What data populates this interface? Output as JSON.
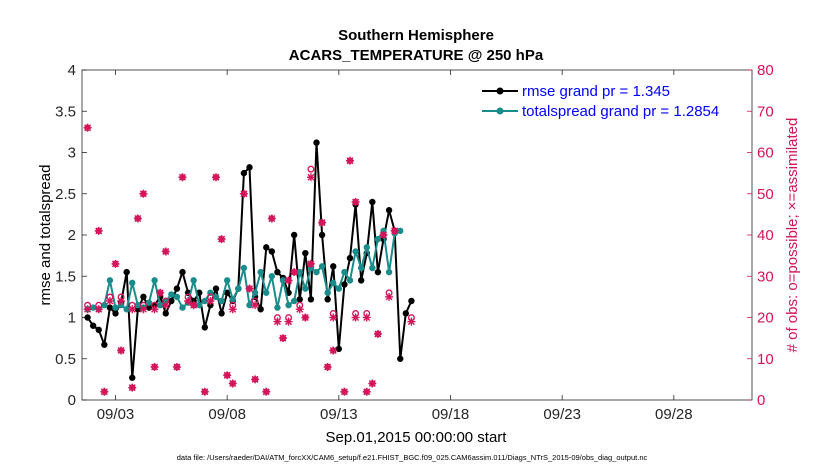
{
  "chart_data": {
    "type": "line",
    "title": "Southern Hemisphere",
    "subtitle": "ACARS_TEMPERATURE @ 250 hPa",
    "xlabel": "Sep.01,2015 00:00:00 start",
    "ylabel": "rmse and totalspread",
    "y2label": "# of obs: o=possible; ×=assimilated",
    "footer": "data file: /Users/raeder/DAI/ATM_forcXX/CAM6_setup/f.e21.FHIST_BGC.f09_025.CAM6assim.011/Diags_NTrS_2015-09/obs_diag_output.nc",
    "x_range": [
      1.5,
      31.5
    ],
    "xticks": [
      3,
      8,
      13,
      18,
      23,
      28
    ],
    "xtick_labels": [
      "09/03",
      "09/08",
      "09/13",
      "09/18",
      "09/23",
      "09/28"
    ],
    "ylim": [
      0,
      4
    ],
    "yticks": [
      0,
      0.5,
      1,
      1.5,
      2,
      2.5,
      3,
      3.5,
      4
    ],
    "ytick_labels": [
      "0",
      "0.5",
      "1",
      "1.5",
      "2",
      "2.5",
      "3",
      "3.5",
      "4"
    ],
    "y2lim": [
      0,
      80
    ],
    "y2ticks": [
      0,
      10,
      20,
      30,
      40,
      50,
      60,
      70,
      80
    ],
    "y2tick_labels": [
      "0",
      "10",
      "20",
      "30",
      "40",
      "50",
      "60",
      "70",
      "80"
    ],
    "legend_position": "top-right",
    "colors": {
      "rmse": "#000000",
      "spread": "#1a8c8c",
      "obs": "#d4145a",
      "text_blue": "#0000ff"
    },
    "series": [
      {
        "name": "rmse grand pr = 1.345",
        "color": "#000000",
        "points": [
          [
            1.75,
            1.0
          ],
          [
            2.0,
            0.9
          ],
          [
            2.25,
            0.85
          ],
          [
            2.5,
            0.67
          ],
          [
            2.75,
            1.12
          ],
          [
            3.0,
            1.05
          ],
          [
            3.25,
            1.18
          ],
          [
            3.5,
            1.55
          ],
          [
            3.75,
            0.27
          ],
          [
            4.0,
            1.1
          ],
          [
            4.25,
            1.25
          ],
          [
            4.5,
            1.12
          ],
          [
            4.75,
            1.15
          ],
          [
            5.0,
            1.25
          ],
          [
            5.25,
            1.05
          ],
          [
            5.5,
            1.2
          ],
          [
            5.75,
            1.35
          ],
          [
            6.0,
            1.55
          ],
          [
            6.25,
            1.3
          ],
          [
            6.5,
            1.2
          ],
          [
            6.75,
            1.3
          ],
          [
            7.0,
            0.88
          ],
          [
            7.25,
            1.15
          ],
          [
            7.5,
            1.35
          ],
          [
            7.75,
            1.05
          ],
          [
            8.0,
            1.3
          ],
          [
            8.25,
            1.2
          ],
          [
            8.5,
            1.35
          ],
          [
            8.75,
            2.75
          ],
          [
            9.0,
            2.82
          ],
          [
            9.25,
            1.25
          ],
          [
            9.5,
            1.1
          ],
          [
            9.75,
            1.85
          ],
          [
            10.0,
            1.8
          ],
          [
            10.25,
            1.55
          ],
          [
            10.5,
            1.48
          ],
          [
            10.75,
            1.3
          ],
          [
            11.0,
            2.0
          ],
          [
            11.25,
            1.22
          ],
          [
            11.5,
            1.78
          ],
          [
            11.75,
            1.22
          ],
          [
            12.0,
            3.12
          ],
          [
            12.25,
            2.0
          ],
          [
            12.5,
            1.22
          ],
          [
            12.75,
            1.62
          ],
          [
            13.0,
            0.62
          ],
          [
            13.25,
            1.4
          ],
          [
            13.5,
            1.72
          ],
          [
            13.75,
            2.37
          ],
          [
            14.0,
            1.45
          ],
          [
            14.25,
            1.78
          ],
          [
            14.5,
            2.4
          ],
          [
            14.75,
            1.55
          ],
          [
            15.0,
            1.95
          ],
          [
            15.25,
            2.3
          ],
          [
            15.5,
            2.05
          ],
          [
            15.75,
            0.5
          ],
          [
            16.0,
            1.05
          ],
          [
            16.25,
            1.2
          ]
        ]
      },
      {
        "name": "totalspread grand pr = 1.2854",
        "color": "#1a8c8c",
        "points": [
          [
            1.75,
            1.1
          ],
          [
            2.0,
            1.12
          ],
          [
            2.25,
            1.1
          ],
          [
            2.5,
            1.15
          ],
          [
            2.75,
            1.45
          ],
          [
            3.0,
            1.12
          ],
          [
            3.25,
            1.15
          ],
          [
            3.5,
            1.1
          ],
          [
            3.75,
            1.42
          ],
          [
            4.0,
            1.15
          ],
          [
            4.25,
            1.12
          ],
          [
            4.5,
            1.18
          ],
          [
            4.75,
            1.45
          ],
          [
            5.0,
            1.15
          ],
          [
            5.25,
            1.2
          ],
          [
            5.5,
            1.28
          ],
          [
            5.75,
            1.25
          ],
          [
            6.0,
            1.12
          ],
          [
            6.25,
            1.18
          ],
          [
            6.5,
            1.45
          ],
          [
            6.75,
            1.15
          ],
          [
            7.0,
            1.2
          ],
          [
            7.25,
            1.3
          ],
          [
            7.5,
            1.25
          ],
          [
            7.75,
            1.2
          ],
          [
            8.0,
            1.45
          ],
          [
            8.25,
            1.22
          ],
          [
            8.5,
            1.35
          ],
          [
            8.75,
            1.6
          ],
          [
            9.0,
            1.15
          ],
          [
            9.25,
            1.3
          ],
          [
            9.5,
            1.55
          ],
          [
            9.75,
            1.3
          ],
          [
            10.0,
            1.5
          ],
          [
            10.25,
            1.12
          ],
          [
            10.5,
            1.45
          ],
          [
            10.75,
            1.15
          ],
          [
            11.0,
            1.2
          ],
          [
            11.25,
            1.55
          ],
          [
            11.5,
            1.35
          ],
          [
            11.75,
            1.6
          ],
          [
            12.0,
            1.55
          ],
          [
            12.25,
            1.62
          ],
          [
            12.5,
            1.3
          ],
          [
            12.75,
            1.42
          ],
          [
            13.0,
            1.35
          ],
          [
            13.25,
            1.55
          ],
          [
            13.5,
            1.45
          ],
          [
            13.75,
            1.8
          ],
          [
            14.0,
            1.6
          ],
          [
            14.25,
            1.85
          ],
          [
            14.5,
            1.6
          ],
          [
            14.75,
            1.95
          ],
          [
            15.0,
            2.05
          ],
          [
            15.25,
            1.55
          ],
          [
            15.5,
            2.02
          ],
          [
            15.75,
            2.05
          ]
        ]
      }
    ],
    "obs_possible": [
      [
        1.75,
        22
      ],
      [
        2.25,
        22
      ],
      [
        2.75,
        24
      ],
      [
        3.25,
        24
      ],
      [
        3.75,
        22
      ],
      [
        4.25,
        22
      ],
      [
        4.75,
        22
      ],
      [
        5.25,
        23
      ],
      [
        6.25,
        24
      ],
      [
        7.25,
        24
      ],
      [
        8.25,
        22
      ],
      [
        9.25,
        23
      ],
      [
        10.25,
        19
      ],
      [
        10.75,
        19
      ],
      [
        11.25,
        22
      ],
      [
        11.75,
        55
      ],
      [
        12.75,
        20
      ],
      [
        13.75,
        20
      ],
      [
        14.25,
        20
      ],
      [
        15.25,
        25
      ],
      [
        16.25,
        19
      ]
    ],
    "obs_assimilated": [
      [
        1.75,
        22
      ],
      [
        2.25,
        22
      ],
      [
        2.75,
        24
      ],
      [
        3.25,
        24
      ],
      [
        3.75,
        22
      ],
      [
        4.25,
        22
      ],
      [
        4.75,
        22
      ],
      [
        5.25,
        23
      ],
      [
        6.25,
        24
      ],
      [
        7.25,
        24
      ],
      [
        8.25,
        22
      ],
      [
        9.25,
        23
      ],
      [
        10.25,
        19
      ],
      [
        10.75,
        19
      ],
      [
        11.25,
        22
      ],
      [
        11.75,
        54
      ],
      [
        12.75,
        20
      ],
      [
        13.75,
        20
      ],
      [
        14.25,
        20
      ],
      [
        15.25,
        25
      ],
      [
        16.25,
        19
      ]
    ],
    "obs_scatter": [
      [
        1.75,
        66
      ],
      [
        2.25,
        41
      ],
      [
        2.5,
        2
      ],
      [
        3.0,
        33
      ],
      [
        3.25,
        12
      ],
      [
        3.75,
        3
      ],
      [
        4.0,
        44
      ],
      [
        4.25,
        50
      ],
      [
        4.75,
        8
      ],
      [
        5.0,
        26
      ],
      [
        5.25,
        36
      ],
      [
        5.75,
        8
      ],
      [
        6.0,
        54
      ],
      [
        6.5,
        23
      ],
      [
        7.0,
        2
      ],
      [
        7.5,
        54
      ],
      [
        7.75,
        39
      ],
      [
        8.0,
        6
      ],
      [
        8.25,
        4
      ],
      [
        8.75,
        50
      ],
      [
        9.0,
        27
      ],
      [
        9.25,
        5
      ],
      [
        9.75,
        2
      ],
      [
        10.0,
        44
      ],
      [
        10.5,
        15
      ],
      [
        10.75,
        29
      ],
      [
        11.0,
        31
      ],
      [
        11.5,
        20
      ],
      [
        11.75,
        33
      ],
      [
        12.25,
        43
      ],
      [
        12.5,
        8
      ],
      [
        12.75,
        12
      ],
      [
        13.25,
        2
      ],
      [
        13.5,
        58
      ],
      [
        13.75,
        48
      ],
      [
        14.25,
        2
      ],
      [
        14.5,
        4
      ],
      [
        14.75,
        16
      ],
      [
        15.0,
        40
      ],
      [
        15.5,
        41
      ]
    ]
  }
}
